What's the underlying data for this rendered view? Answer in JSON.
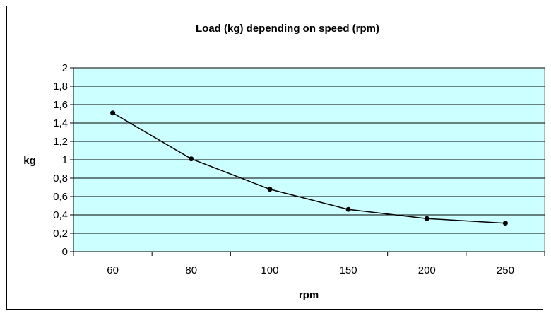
{
  "chart_data": {
    "type": "line",
    "title": "Load (kg) depending on speed (rpm)",
    "xlabel": "rpm",
    "ylabel": "kg",
    "categories": [
      "60",
      "80",
      "100",
      "150",
      "200",
      "250"
    ],
    "series": [
      {
        "values": [
          1.51,
          1.01,
          0.68,
          0.46,
          0.36,
          0.31
        ]
      }
    ],
    "ylim": [
      0,
      2
    ],
    "ystep": 0.2,
    "ytick_labels": [
      "0",
      "0,2",
      "0,4",
      "0,6",
      "0,8",
      "1",
      "1,2",
      "1,4",
      "1,6",
      "1,8",
      "2"
    ],
    "grid": true,
    "legend": "none",
    "colors": {
      "plot_background": "#ccffff",
      "line": "#000000",
      "gridline": "#000000"
    }
  }
}
